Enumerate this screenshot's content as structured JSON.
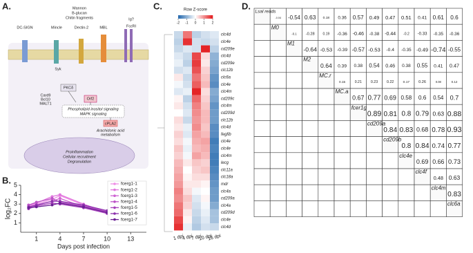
{
  "panel_labels": [
    "A.",
    "B.",
    "C.",
    "D."
  ],
  "diagram": {
    "ligands": [
      "Mannon",
      "B-glucan",
      "Chitin fragments"
    ],
    "receptors": [
      "DC-SIGN",
      "Mincle",
      "Dectin-2",
      "MBL",
      "Ig?",
      "FcεRI"
    ],
    "nodes": [
      "Syk",
      "PKCδ",
      "Card9",
      "Bcl10",
      "MALT1",
      "Orf2",
      "Phospholipid inositol signaling",
      "MAPK signaling",
      "cPLA2",
      "Arachidonic acid",
      "metabolism",
      "Proinflammation",
      "Cellular recruitment",
      "Degranulation"
    ]
  },
  "chart_data": [
    {
      "type": "line",
      "x_label": "Days post infection",
      "y_label": "log₂FC",
      "x": [
        0,
        1,
        3,
        4,
        7,
        10,
        14
      ],
      "xlim": [
        -1,
        15
      ],
      "xticks": [
        1,
        4,
        7,
        10,
        13
      ],
      "ylim": [
        0,
        5
      ],
      "yticks": [
        1,
        2,
        3,
        4,
        5
      ],
      "legend": "upper right",
      "series": [
        {
          "name": "fcerg1-1",
          "color": "#ef8fe6",
          "values": [
            2.7,
            3.0,
            3.5,
            3.9,
            2.9,
            2.0,
            1.6
          ]
        },
        {
          "name": "fcerg1-2",
          "color": "#e077dd",
          "values": [
            2.8,
            3.1,
            3.8,
            4.0,
            3.0,
            2.1,
            null
          ]
        },
        {
          "name": "fcerg1-3",
          "color": "#cf63d3",
          "values": [
            2.6,
            2.9,
            3.3,
            3.6,
            2.7,
            2.0,
            null
          ]
        },
        {
          "name": "fcerg1-4",
          "color": "#bb52c7",
          "values": [
            2.9,
            3.2,
            3.6,
            3.2,
            2.8,
            2.2,
            null
          ]
        },
        {
          "name": "fcerg1-5",
          "color": "#a641bb",
          "values": [
            2.5,
            2.8,
            3.1,
            3.0,
            2.6,
            2.0,
            null
          ]
        },
        {
          "name": "fcerg1-6",
          "color": "#8c30ad",
          "values": [
            2.7,
            2.9,
            3.3,
            3.3,
            2.9,
            2.3,
            null
          ]
        },
        {
          "name": "fcerg1-7",
          "color": "#6a1f94",
          "values": [
            2.6,
            2.7,
            2.9,
            3.1,
            2.7,
            2.1,
            null
          ]
        }
      ]
    },
    {
      "type": "heatmap",
      "legend_title": "Row Z-score",
      "zlim": [
        -2,
        2
      ],
      "colorbar_ticks": [
        -2,
        -1,
        0,
        1,
        2
      ],
      "columns": [
        "1 dpi",
        "4 dpi",
        "7 dpi",
        "10 dpi",
        "16 dpi"
      ],
      "rows": [
        "clc4d",
        "clc4e",
        "cd209e",
        "clc4d",
        "cd209e",
        "clc12b",
        "clc6a",
        "clc4e",
        "clc4m",
        "cd209c",
        "clc4m",
        "cd209d",
        "clc12b",
        "clc4d",
        "fegfib",
        "clc4e",
        "clc4e",
        "clc4m",
        "lecg",
        "clc11a",
        "clc18a",
        "mdr",
        "clc4a",
        "cd209a",
        "clc4a",
        "cd209d",
        "clc4e",
        "clc4d"
      ],
      "values": [
        [
          -0.5,
          1.2,
          -0.6,
          -0.4,
          -0.3
        ],
        [
          -0.6,
          1.8,
          -0.4,
          -0.5,
          -0.4
        ],
        [
          -0.5,
          -0.3,
          -0.4,
          1.9,
          -0.6
        ],
        [
          -0.3,
          -0.5,
          1.6,
          0.3,
          -1.0
        ],
        [
          -0.2,
          -0.6,
          1.7,
          0.2,
          -1.1
        ],
        [
          -0.4,
          -0.3,
          1.5,
          0.4,
          -1.2
        ],
        [
          0.2,
          -0.5,
          1.2,
          0.5,
          -1.4
        ],
        [
          -0.1,
          -0.4,
          1.4,
          0.6,
          -1.5
        ],
        [
          -0.3,
          -0.2,
          1.9,
          0.3,
          -1.1
        ],
        [
          0.1,
          -0.6,
          1.3,
          0.4,
          -1.2
        ],
        [
          0.2,
          -0.4,
          1.1,
          0.5,
          -1.4
        ],
        [
          0.0,
          -0.3,
          1.0,
          0.6,
          -1.3
        ],
        [
          0.3,
          -0.5,
          0.9,
          0.6,
          -1.3
        ],
        [
          0.2,
          -0.2,
          1.0,
          0.5,
          -1.5
        ],
        [
          0.4,
          -0.3,
          0.8,
          0.6,
          -1.5
        ],
        [
          0.3,
          -0.1,
          0.7,
          0.8,
          -1.7
        ],
        [
          0.5,
          -0.2,
          0.6,
          0.7,
          -1.6
        ],
        [
          0.4,
          -0.1,
          0.8,
          0.6,
          -1.7
        ],
        [
          0.6,
          0.2,
          0.5,
          0.4,
          -1.7
        ],
        [
          0.7,
          0.0,
          0.4,
          0.5,
          -1.6
        ],
        [
          0.8,
          0.1,
          0.3,
          0.3,
          -1.5
        ],
        [
          0.9,
          0.2,
          0.2,
          0.1,
          -1.4
        ],
        [
          1.1,
          0.3,
          -0.1,
          0.0,
          -1.3
        ],
        [
          1.0,
          0.5,
          -0.3,
          0.1,
          -1.3
        ],
        [
          1.2,
          0.4,
          -0.4,
          -0.1,
          -1.1
        ],
        [
          1.3,
          0.2,
          -0.5,
          -0.2,
          -0.8
        ],
        [
          1.6,
          0.1,
          -0.6,
          -0.3,
          -0.8
        ],
        [
          1.8,
          -0.2,
          -0.7,
          -0.4,
          -0.5
        ]
      ]
    },
    {
      "type": "correlation_matrix",
      "variables": [
        "Lsal reads",
        "M0",
        "M1",
        "M2",
        "MC.r",
        "MC.a",
        "fcer1g",
        "cd209a",
        "cd209b",
        "clc4e",
        "clc4f",
        "clc4m",
        "clc6a"
      ],
      "correlations": [
        [
          -0.04,
          -0.54,
          0.63,
          0.18,
          0.36,
          0.57,
          0.49,
          0.47,
          0.51,
          0.41,
          0.61,
          0.6
        ],
        [
          -0.1,
          -0.28,
          0.19,
          -0.36,
          -0.46,
          -0.38,
          -0.44,
          -0.2,
          -0.33,
          -0.35,
          -0.36
        ],
        [
          -0.64,
          -0.53,
          -0.39,
          -0.57,
          -0.53,
          -0.4,
          -0.35,
          -0.49,
          -0.74,
          -0.55
        ],
        [
          0.64,
          0.39,
          0.38,
          0.54,
          0.46,
          0.38,
          0.55,
          0.41,
          0.47
        ],
        [
          0.15,
          0.21,
          0.23,
          0.22,
          0.17,
          0.26,
          0.08,
          0.12
        ],
        [
          0.67,
          0.77,
          0.69,
          0.58,
          0.6,
          0.54,
          0.7
        ],
        [
          0.89,
          0.81,
          0.8,
          0.79,
          0.63,
          0.88
        ],
        [
          0.84,
          0.83,
          0.68,
          0.78,
          0.93
        ],
        [
          0.8,
          0.84,
          0.74,
          0.77
        ],
        [
          0.69,
          0.66,
          0.73
        ],
        [
          0.48,
          0.63
        ],
        [
          0.83
        ]
      ]
    }
  ]
}
